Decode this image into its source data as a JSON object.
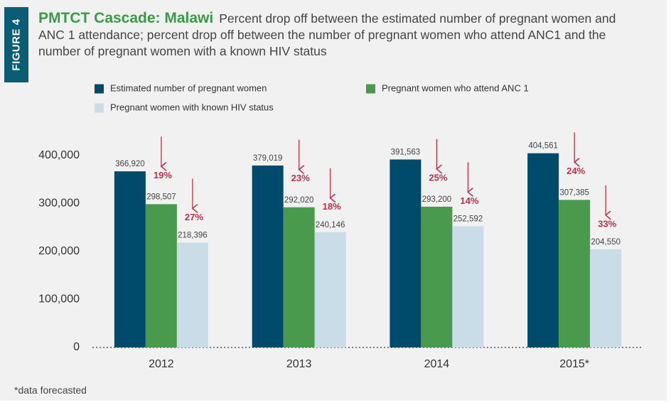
{
  "chart_data": {
    "type": "bar",
    "figure_label": "FIGURE 4",
    "title": "PMTCT Cascade: Malawi",
    "subtitle": "Percent drop off between the estimated number of pregnant women and ANC 1 attendance; percent drop off between the number of pregnant women who attend ANC1 and the number of pregnant women with a known HIV status",
    "categories": [
      "2012",
      "2013",
      "2014",
      "2015*"
    ],
    "series": [
      {
        "name": "Estimated number of pregnant women",
        "color": "#004b6b",
        "values": [
          366920,
          379019,
          391563,
          404561
        ],
        "value_labels": [
          "366,920",
          "379,019",
          "391,563",
          "404,561"
        ]
      },
      {
        "name": "Pregnant women who attend ANC 1",
        "color": "#4a9a4e",
        "values": [
          298507,
          292020,
          293200,
          307385
        ],
        "value_labels": [
          "298,507",
          "292,020",
          "293,200",
          "307,385"
        ]
      },
      {
        "name": "Pregnant women with known HIV status",
        "color": "#c9dde8",
        "values": [
          218396,
          240146,
          252592,
          204550
        ],
        "value_labels": [
          "218,396",
          "240,146",
          "252,592",
          "204,550"
        ]
      }
    ],
    "drops": [
      {
        "values": [
          19,
          23,
          25,
          24
        ],
        "value_labels": [
          "19%",
          "23%",
          "25%",
          "24%"
        ],
        "color": "#c0304a"
      },
      {
        "values": [
          27,
          18,
          14,
          33
        ],
        "value_labels": [
          "27%",
          "18%",
          "14%",
          "33%"
        ],
        "color": "#c0304a"
      }
    ],
    "ylim": [
      0,
      450000
    ],
    "yticks": [
      0,
      {
        "value": 100000,
        "label": "100,000"
      },
      {
        "value": 200000,
        "label": "200,000"
      },
      {
        "value": 300000,
        "label": "300,000"
      },
      {
        "value": 400000,
        "label": "400,000"
      }
    ],
    "footnote": "*data forecasted"
  }
}
